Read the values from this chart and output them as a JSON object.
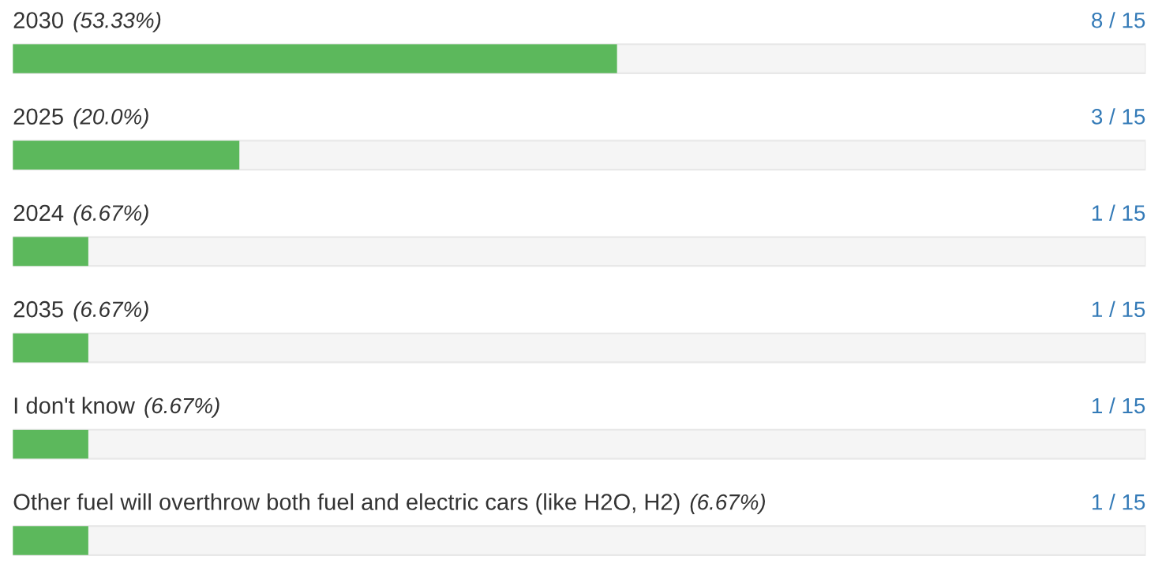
{
  "chart_data": {
    "type": "bar",
    "orientation": "horizontal",
    "categories": [
      "2030",
      "2025",
      "2024",
      "2035",
      "I don't know",
      "Other fuel will overthrow both fuel and electric cars (like H2O, H2)"
    ],
    "values": [
      8,
      3,
      1,
      1,
      1,
      1
    ],
    "value_labels": [
      "8 / 15",
      "3 / 15",
      "1 / 15",
      "1 / 15",
      "1 / 15",
      "1 / 15"
    ],
    "color": "#5cb85c",
    "xlim": [
      0,
      15
    ],
    "tick_labels": false,
    "annotations": [
      "(53.33%)",
      "(20.0%)",
      "(6.67%)",
      "(6.67%)",
      "(6.67%)",
      "(6.67%)"
    ]
  }
}
